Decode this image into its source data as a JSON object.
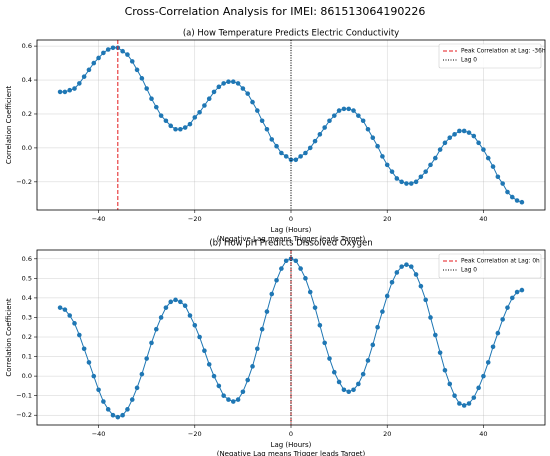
{
  "title": "Cross-Correlation Analysis for IMEI: 861513064190226",
  "chart_data": [
    {
      "type": "line",
      "title": "(a) How Temperature Predicts Electric Conductivity",
      "xlabel": [
        "Lag (Hours)",
        "(Negative Lag means Trigger leads Target)"
      ],
      "ylabel": "Correlation Coefficient",
      "x": [
        -48,
        -47,
        -46,
        -45,
        -44,
        -43,
        -42,
        -41,
        -40,
        -39,
        -38,
        -37,
        -36,
        -35,
        -34,
        -33,
        -32,
        -31,
        -30,
        -29,
        -28,
        -27,
        -26,
        -25,
        -24,
        -23,
        -22,
        -21,
        -20,
        -19,
        -18,
        -17,
        -16,
        -15,
        -14,
        -13,
        -12,
        -11,
        -10,
        -9,
        -8,
        -7,
        -6,
        -5,
        -4,
        -3,
        -2,
        -1,
        0,
        1,
        2,
        3,
        4,
        5,
        6,
        7,
        8,
        9,
        10,
        11,
        12,
        13,
        14,
        15,
        16,
        17,
        18,
        19,
        20,
        21,
        22,
        23,
        24,
        25,
        26,
        27,
        28,
        29,
        30,
        31,
        32,
        33,
        34,
        35,
        36,
        37,
        38,
        39,
        40,
        41,
        42,
        43,
        44,
        45,
        46,
        47,
        48
      ],
      "series": [
        {
          "color": "#1f77b4",
          "values": [
            0.33,
            0.33,
            0.34,
            0.35,
            0.38,
            0.42,
            0.46,
            0.5,
            0.53,
            0.56,
            0.58,
            0.59,
            0.59,
            0.57,
            0.55,
            0.51,
            0.46,
            0.41,
            0.35,
            0.29,
            0.24,
            0.19,
            0.16,
            0.13,
            0.11,
            0.11,
            0.12,
            0.14,
            0.18,
            0.21,
            0.25,
            0.29,
            0.33,
            0.36,
            0.38,
            0.39,
            0.39,
            0.38,
            0.35,
            0.32,
            0.27,
            0.22,
            0.16,
            0.11,
            0.05,
            0.01,
            -0.03,
            -0.05,
            -0.07,
            -0.07,
            -0.05,
            -0.03,
            0.0,
            0.04,
            0.08,
            0.12,
            0.16,
            0.19,
            0.22,
            0.23,
            0.23,
            0.22,
            0.19,
            0.16,
            0.11,
            0.06,
            0.01,
            -0.05,
            -0.1,
            -0.14,
            -0.18,
            -0.2,
            -0.21,
            -0.21,
            -0.2,
            -0.17,
            -0.14,
            -0.1,
            -0.06,
            -0.01,
            0.03,
            0.06,
            0.08,
            0.1,
            0.1,
            0.09,
            0.07,
            0.03,
            -0.01,
            -0.06,
            -0.11,
            -0.17,
            -0.21,
            -0.26,
            -0.29,
            -0.31,
            -0.32
          ]
        }
      ],
      "vlines": [
        {
          "label": "Peak Correlation at Lag: -36h",
          "x": -36,
          "color": "#e41a1c",
          "style": "dashed"
        },
        {
          "label": "Lag 0",
          "x": 0,
          "color": "#000000",
          "style": "dotted"
        }
      ],
      "xlim": [
        -52.8,
        52.8
      ],
      "xticks": [
        {
          "value": -40,
          "label": "−40"
        },
        {
          "value": -20,
          "label": "−20"
        },
        0,
        20,
        40
      ],
      "ylim": [
        -0.366,
        0.636
      ],
      "yticks": [
        {
          "value": -0.2,
          "label": "−0.2"
        },
        {
          "value": 0,
          "label": "0.0"
        },
        0.2,
        0.4,
        0.6
      ],
      "grid": true,
      "legend": "upper right"
    },
    {
      "type": "line",
      "title": "(b) How pH Predicts Dissolved Oxygen",
      "xlabel": [
        "Lag (Hours)",
        "(Negative Lag means Trigger leads Target)"
      ],
      "ylabel": "Correlation Coefficient",
      "x": [
        -48,
        -47,
        -46,
        -45,
        -44,
        -43,
        -42,
        -41,
        -40,
        -39,
        -38,
        -37,
        -36,
        -35,
        -34,
        -33,
        -32,
        -31,
        -30,
        -29,
        -28,
        -27,
        -26,
        -25,
        -24,
        -23,
        -22,
        -21,
        -20,
        -19,
        -18,
        -17,
        -16,
        -15,
        -14,
        -13,
        -12,
        -11,
        -10,
        -9,
        -8,
        -7,
        -6,
        -5,
        -4,
        -3,
        -2,
        -1,
        0,
        1,
        2,
        3,
        4,
        5,
        6,
        7,
        8,
        9,
        10,
        11,
        12,
        13,
        14,
        15,
        16,
        17,
        18,
        19,
        20,
        21,
        22,
        23,
        24,
        25,
        26,
        27,
        28,
        29,
        30,
        31,
        32,
        33,
        34,
        35,
        36,
        37,
        38,
        39,
        40,
        41,
        42,
        43,
        44,
        45,
        46,
        47,
        48
      ],
      "series": [
        {
          "color": "#1f77b4",
          "values": [
            0.35,
            0.34,
            0.31,
            0.27,
            0.21,
            0.14,
            0.07,
            0.0,
            -0.07,
            -0.13,
            -0.17,
            -0.2,
            -0.21,
            -0.2,
            -0.17,
            -0.12,
            -0.06,
            0.01,
            0.09,
            0.17,
            0.24,
            0.3,
            0.35,
            0.38,
            0.39,
            0.38,
            0.36,
            0.31,
            0.26,
            0.2,
            0.13,
            0.06,
            0.0,
            -0.05,
            -0.1,
            -0.12,
            -0.13,
            -0.12,
            -0.08,
            -0.02,
            0.05,
            0.14,
            0.24,
            0.33,
            0.42,
            0.49,
            0.55,
            0.59,
            0.6,
            0.59,
            0.55,
            0.5,
            0.43,
            0.35,
            0.26,
            0.17,
            0.09,
            0.02,
            -0.03,
            -0.07,
            -0.08,
            -0.07,
            -0.04,
            0.01,
            0.08,
            0.16,
            0.25,
            0.33,
            0.41,
            0.48,
            0.53,
            0.56,
            0.57,
            0.56,
            0.52,
            0.46,
            0.39,
            0.3,
            0.21,
            0.12,
            0.03,
            -0.04,
            -0.1,
            -0.14,
            -0.15,
            -0.14,
            -0.11,
            -0.06,
            0.0,
            0.07,
            0.15,
            0.22,
            0.29,
            0.35,
            0.4,
            0.43,
            0.44
          ]
        }
      ],
      "vlines": [
        {
          "label": "Peak Correlation at Lag: 0h",
          "x": 0,
          "color": "#e41a1c",
          "style": "dashed"
        },
        {
          "label": "Lag 0",
          "x": 0,
          "color": "#000000",
          "style": "dotted"
        }
      ],
      "xlim": [
        -52.8,
        52.8
      ],
      "xticks": [
        {
          "value": -40,
          "label": "−40"
        },
        {
          "value": -20,
          "label": "−20"
        },
        0,
        20,
        40
      ],
      "ylim": [
        -0.25,
        0.645
      ],
      "yticks": [
        {
          "value": -0.2,
          "label": "−0.2"
        },
        {
          "value": -0.1,
          "label": "−0.1"
        },
        {
          "value": 0,
          "label": "0.0"
        },
        0.1,
        0.2,
        0.3,
        0.4,
        0.5,
        0.6
      ],
      "grid": true,
      "legend": "upper right"
    }
  ]
}
